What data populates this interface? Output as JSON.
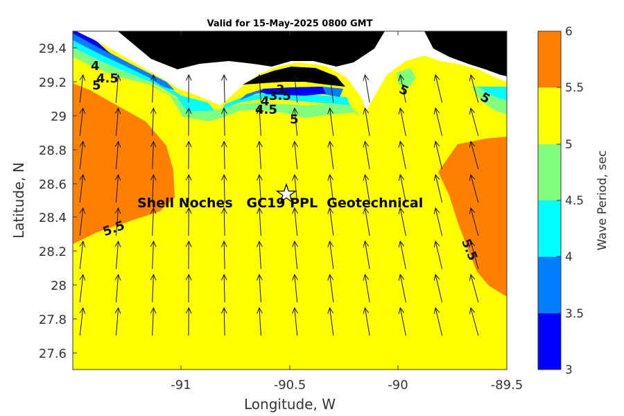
{
  "title": "Valid for 15-May-2025 0800 GMT",
  "xlabel": "Longitude, W",
  "ylabel": "Latitude, N",
  "x_ticks": [
    "-91",
    "-90.5",
    "-90",
    "-89.5"
  ],
  "y_ticks": [
    "29.4",
    "29.2",
    "29",
    "28.8",
    "28.6",
    "28.4",
    "28.2",
    "28",
    "27.8",
    "27.6"
  ],
  "colorbar": {
    "label": "Wave Period, sec",
    "ticks": [
      "3",
      "3.5",
      "4",
      "4.5",
      "5",
      "5.5",
      "6"
    ],
    "levels": [
      {
        "from": 3,
        "to": 3.5,
        "color": "#0000ff"
      },
      {
        "from": 3.5,
        "to": 4,
        "color": "#0080ff"
      },
      {
        "from": 4,
        "to": 4.5,
        "color": "#00ffff"
      },
      {
        "from": 4.5,
        "to": 5,
        "color": "#80ff80"
      },
      {
        "from": 5,
        "to": 5.5,
        "color": "#ffff00"
      },
      {
        "from": 5.5,
        "to": 6,
        "color": "#ff8000"
      }
    ]
  },
  "contour_labels": {
    "west_4": "4",
    "west_45": "4.5",
    "west_5": "5",
    "center_3": "3",
    "center_35": "3.5",
    "center_4": "4",
    "center_45": "4.5",
    "center_5": "5",
    "east_5a": "5",
    "east_5b": "5",
    "west_55": "5.5",
    "east_55": "5.5"
  },
  "site": {
    "name": "Shell Noches   GC19 PPL  Geotechnical",
    "marker": "star-icon"
  },
  "map": {
    "land_color": "#000000",
    "x_range": [
      -91.5,
      -89.5
    ],
    "y_range": [
      27.5,
      29.5
    ]
  }
}
